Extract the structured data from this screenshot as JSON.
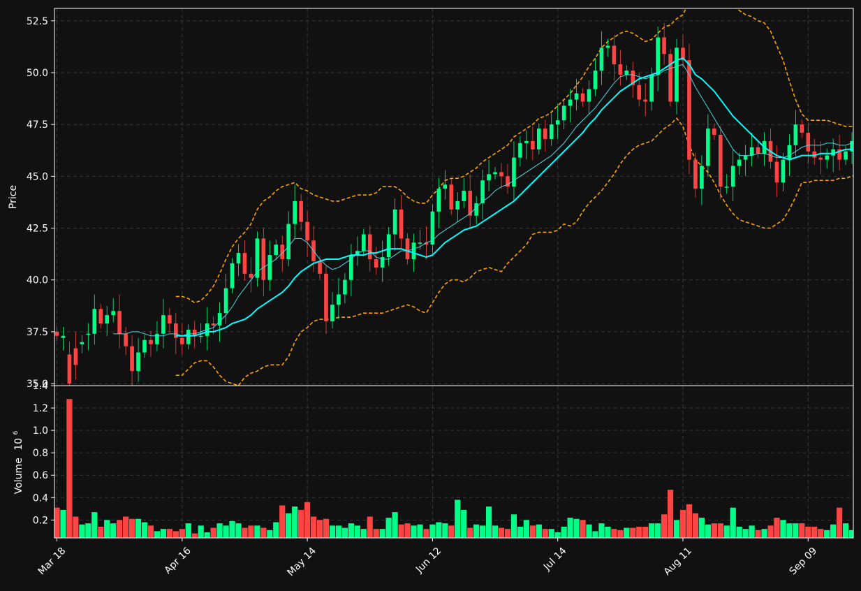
{
  "chart_data": [
    {
      "type": "candlestick",
      "ylabel": "Price",
      "ylim": [
        34.9,
        53.1
      ],
      "yticks": [
        "35.0",
        "37.5",
        "40.0",
        "42.5",
        "45.0",
        "47.5",
        "50.0",
        "52.5"
      ],
      "xticks": [
        "Mar 18",
        "Apr 16",
        "May 14",
        "Jun 12",
        "Jul 14",
        "Aug 11",
        "Sep 09"
      ],
      "xtick_index": [
        0,
        20,
        40,
        60,
        80,
        100,
        120
      ],
      "grid": true,
      "colors": {
        "up": "#00ff88",
        "down": "#ff4444",
        "ma_fast": "#4dd8e0",
        "ma_slow": "#00ffff",
        "bands": "#ffa500",
        "background": "#111111"
      },
      "start": [
        37.5,
        37.2,
        36.4,
        36.7,
        36.9,
        37.4
      ],
      "close": [
        37.3,
        37.3,
        35.0,
        35.9,
        37.0,
        37.4,
        38.6,
        37.9,
        38.3,
        38.5,
        37.4,
        36.8,
        35.6,
        36.5,
        37.1,
        36.9,
        37.4,
        38.3,
        37.9,
        37.2,
        36.9,
        37.6,
        37.3,
        37.3,
        37.9,
        37.8,
        38.4,
        39.6,
        40.8,
        41.3,
        40.3,
        40.1,
        42.0,
        40.0,
        41.2,
        41.7,
        41.0,
        42.7,
        43.8,
        42.8,
        41.9,
        40.9,
        40.3,
        38.0,
        38.8,
        39.3,
        40.0,
        41.2,
        41.4,
        42.2,
        41.0,
        40.6,
        41.1,
        42.2,
        43.4,
        42.0,
        41.0,
        41.8,
        41.8,
        41.7,
        43.3,
        44.4,
        44.6,
        43.4,
        43.8,
        44.3,
        43.1,
        43.7,
        44.8,
        45.1,
        45.2,
        45.0,
        44.5,
        45.9,
        46.6,
        46.7,
        46.3,
        47.3,
        46.8,
        47.5,
        47.7,
        48.4,
        48.7,
        49.0,
        48.6,
        49.2,
        50.1,
        51.2,
        51.3,
        50.4,
        49.9,
        50.1,
        49.4,
        48.7,
        48.6,
        49.9,
        51.7,
        50.9,
        48.6,
        51.2,
        50.6,
        45.8,
        44.4,
        45.5,
        47.3,
        47.0,
        44.5,
        44.5,
        45.5,
        45.8,
        46.0,
        46.4,
        46.1,
        46.7,
        45.7,
        44.7,
        45.8,
        46.5,
        47.5,
        47.1,
        46.2,
        45.9,
        45.8,
        46.0,
        46.3,
        45.8,
        46.2,
        46.7,
        45.8,
        45.4
      ],
      "series": [
        {
          "values": [
            null,
            null,
            null,
            null,
            null,
            null,
            null,
            null,
            null,
            37.4,
            37.4,
            37.4,
            37.5,
            37.5,
            37.4,
            37.3,
            37.3,
            37.3,
            37.4,
            37.4,
            37.3,
            37.4,
            37.4,
            37.5,
            37.6,
            37.7,
            38.0,
            38.3,
            38.7,
            39.2,
            39.6,
            40.0,
            40.4,
            40.6,
            40.8,
            41.0,
            41.3,
            41.6,
            42.0,
            42.0,
            41.8,
            41.4,
            41.0,
            40.7,
            40.5,
            40.6,
            40.8,
            41.0,
            41.3,
            41.4,
            41.4,
            41.1,
            41.0,
            41.0,
            41.2,
            41.4,
            41.4,
            41.5,
            41.6,
            41.8,
            41.9,
            42.2,
            42.4,
            42.6,
            42.8,
            43.0,
            43.2,
            43.5,
            43.8,
            44.0,
            44.3,
            44.5,
            44.6,
            44.8,
            45.0,
            45.2,
            45.4,
            45.6,
            45.8,
            46.0,
            46.3,
            46.6,
            47.0,
            47.4,
            47.7,
            48.0,
            48.3,
            48.7,
            49.1,
            49.5,
            49.8,
            49.9,
            49.9,
            49.8,
            49.7,
            49.8,
            49.9,
            50.1,
            50.2,
            50.3,
            50.4,
            49.9,
            49.3,
            48.8,
            48.3,
            47.8,
            47.3,
            46.8,
            46.3,
            46.0,
            46.0,
            46.0,
            46.1,
            46.1,
            46.0,
            45.9,
            45.9,
            46.0,
            46.2,
            46.4,
            46.5,
            46.5,
            46.5,
            46.6,
            46.6,
            46.5,
            46.5,
            46.6,
            46.5,
            46.4
          ]
        },
        {
          "values": [
            null,
            null,
            null,
            null,
            null,
            null,
            null,
            null,
            null,
            null,
            null,
            null,
            null,
            null,
            null,
            null,
            null,
            null,
            null,
            37.3,
            37.3,
            37.3,
            37.3,
            37.4,
            37.5,
            37.5,
            37.6,
            37.7,
            37.9,
            38.0,
            38.1,
            38.3,
            38.6,
            38.8,
            39.0,
            39.2,
            39.4,
            39.7,
            40.1,
            40.4,
            40.6,
            40.8,
            40.9,
            41.0,
            41.0,
            41.0,
            41.1,
            41.2,
            41.2,
            41.2,
            41.3,
            41.3,
            41.4,
            41.5,
            41.5,
            41.5,
            41.4,
            41.3,
            41.2,
            41.1,
            41.2,
            41.5,
            41.8,
            42.0,
            42.2,
            42.4,
            42.5,
            42.6,
            42.8,
            43.0,
            43.2,
            43.4,
            43.6,
            43.8,
            44.1,
            44.4,
            44.7,
            45.0,
            45.3,
            45.6,
            45.9,
            46.2,
            46.5,
            46.8,
            47.1,
            47.5,
            47.8,
            48.2,
            48.5,
            48.8,
            49.1,
            49.3,
            49.5,
            49.7,
            49.8,
            49.9,
            50.0,
            50.2,
            50.4,
            50.6,
            50.7,
            50.4,
            49.9,
            49.7,
            49.4,
            49.1,
            48.7,
            48.3,
            47.9,
            47.6,
            47.3,
            47.0,
            46.7,
            46.4,
            46.2,
            46.0,
            45.9,
            45.8,
            45.9,
            46.0,
            46.0,
            46.0,
            46.1,
            46.1,
            46.1,
            46.2,
            46.3,
            46.3,
            46.2,
            46.1
          ]
        },
        {
          "values": [
            null,
            null,
            null,
            null,
            null,
            null,
            null,
            null,
            null,
            null,
            null,
            null,
            null,
            null,
            null,
            null,
            null,
            null,
            null,
            39.2,
            39.2,
            39.1,
            38.9,
            39.0,
            39.3,
            39.7,
            40.3,
            41.0,
            41.6,
            42.0,
            42.3,
            42.7,
            43.4,
            43.8,
            44.0,
            44.3,
            44.5,
            44.6,
            44.7,
            44.4,
            44.3,
            44.1,
            44.0,
            43.9,
            43.8,
            43.8,
            43.9,
            44.0,
            44.1,
            44.1,
            44.1,
            44.2,
            44.5,
            44.5,
            44.5,
            44.3,
            44.0,
            43.8,
            43.7,
            43.7,
            44.1,
            44.4,
            44.8,
            44.9,
            44.9,
            45.0,
            45.2,
            45.4,
            45.7,
            45.9,
            46.1,
            46.3,
            46.5,
            46.9,
            47.1,
            47.3,
            47.5,
            47.8,
            47.9,
            48.1,
            48.4,
            48.7,
            49.0,
            49.4,
            49.8,
            50.3,
            50.7,
            51.2,
            51.5,
            51.7,
            51.9,
            52.0,
            51.9,
            51.7,
            51.5,
            51.6,
            51.9,
            52.2,
            52.3,
            52.6,
            52.8,
            53.4,
            53.7,
            53.9,
            54.0,
            54.0,
            53.8,
            53.5,
            53.2,
            53.0,
            52.8,
            52.7,
            52.5,
            52.4,
            52.0,
            51.3,
            50.6,
            49.6,
            48.7,
            48.0,
            47.7,
            47.7,
            47.7,
            47.7,
            47.6,
            47.5,
            47.4,
            47.4,
            47.5,
            47.4
          ]
        },
        {
          "values": [
            null,
            null,
            null,
            null,
            null,
            null,
            null,
            null,
            null,
            null,
            null,
            null,
            null,
            null,
            null,
            null,
            null,
            null,
            null,
            35.4,
            35.4,
            35.7,
            36.0,
            36.1,
            36.1,
            35.8,
            35.4,
            35.1,
            35.0,
            34.9,
            35.3,
            35.5,
            35.6,
            35.8,
            35.9,
            35.9,
            35.9,
            36.3,
            37.0,
            37.5,
            37.7,
            38.0,
            38.1,
            38.1,
            38.1,
            38.2,
            38.2,
            38.2,
            38.3,
            38.4,
            38.4,
            38.4,
            38.4,
            38.5,
            38.6,
            38.7,
            38.8,
            38.7,
            38.5,
            38.4,
            38.9,
            39.4,
            39.8,
            40.0,
            40.0,
            39.9,
            40.1,
            40.4,
            40.5,
            40.6,
            40.5,
            40.4,
            40.8,
            41.1,
            41.4,
            41.7,
            42.2,
            42.3,
            42.3,
            42.3,
            42.4,
            42.7,
            42.6,
            42.8,
            43.3,
            43.7,
            44.0,
            44.3,
            44.7,
            45.1,
            45.6,
            46.0,
            46.3,
            46.5,
            46.6,
            46.7,
            47.0,
            47.3,
            47.5,
            47.8,
            47.4,
            46.5,
            45.8,
            45.5,
            45.2,
            44.7,
            44.1,
            43.6,
            43.2,
            42.9,
            42.8,
            42.7,
            42.6,
            42.5,
            42.5,
            42.7,
            42.9,
            43.4,
            44.0,
            44.7,
            44.7,
            44.8,
            44.8,
            44.8,
            44.8,
            44.9,
            44.9,
            45.0,
            45.1,
            45.2
          ]
        }
      ]
    },
    {
      "type": "bar",
      "ylabel": "Volume",
      "ylabel_multiplier": "10",
      "ylabel_exponent": "6",
      "ylim": [
        0.04,
        1.4
      ],
      "yticks": [
        "0.2",
        "0.4",
        "0.6",
        "0.8",
        "1.0",
        "1.2",
        "1.4"
      ],
      "xticks": [
        "Mar 18",
        "Apr 16",
        "May 14",
        "Jun 12",
        "Jul 14",
        "Aug 11",
        "Sep 09"
      ],
      "grid": true,
      "values": [
        0.31,
        0.29,
        1.28,
        0.23,
        0.16,
        0.17,
        0.27,
        0.14,
        0.2,
        0.17,
        0.2,
        0.23,
        0.21,
        0.21,
        0.18,
        0.15,
        0.1,
        0.12,
        0.12,
        0.1,
        0.12,
        0.17,
        0.08,
        0.15,
        0.09,
        0.13,
        0.17,
        0.15,
        0.19,
        0.17,
        0.13,
        0.15,
        0.15,
        0.13,
        0.11,
        0.18,
        0.33,
        0.26,
        0.32,
        0.29,
        0.36,
        0.23,
        0.2,
        0.21,
        0.15,
        0.15,
        0.13,
        0.17,
        0.15,
        0.12,
        0.23,
        0.12,
        0.12,
        0.22,
        0.27,
        0.16,
        0.17,
        0.15,
        0.16,
        0.12,
        0.16,
        0.18,
        0.17,
        0.15,
        0.38,
        0.29,
        0.13,
        0.16,
        0.15,
        0.32,
        0.15,
        0.13,
        0.12,
        0.25,
        0.14,
        0.2,
        0.15,
        0.16,
        0.12,
        0.12,
        0.09,
        0.14,
        0.22,
        0.21,
        0.2,
        0.16,
        0.1,
        0.17,
        0.14,
        0.12,
        0.11,
        0.13,
        0.13,
        0.14,
        0.14,
        0.17,
        0.17,
        0.25,
        0.47,
        0.2,
        0.29,
        0.34,
        0.26,
        0.22,
        0.16,
        0.17,
        0.17,
        0.15,
        0.31,
        0.14,
        0.12,
        0.15,
        0.11,
        0.12,
        0.15,
        0.22,
        0.2,
        0.17,
        0.17,
        0.17,
        0.14,
        0.14,
        0.12,
        0.11,
        0.16,
        0.31,
        0.17,
        0.11
      ]
    }
  ]
}
